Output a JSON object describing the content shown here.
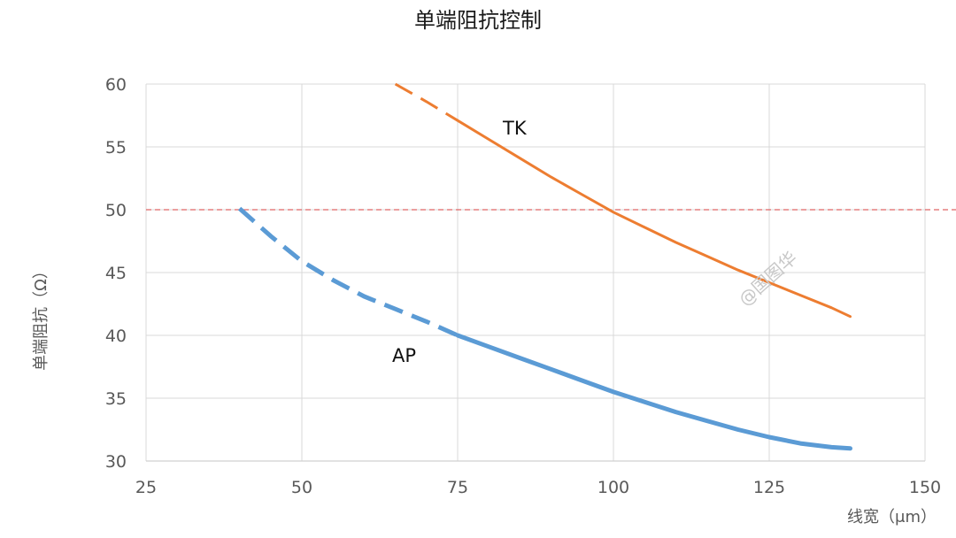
{
  "chart_data": {
    "type": "line",
    "title": "单端阻抗控制",
    "xlabel": "线宽（μm）",
    "ylabel": "单端阻抗（Ω）",
    "xlim": [
      25,
      150
    ],
    "ylim": [
      30,
      60
    ],
    "xticks": [
      25,
      50,
      75,
      100,
      125,
      150
    ],
    "yticks": [
      30,
      35,
      40,
      45,
      50,
      55,
      60
    ],
    "grid": true,
    "reference_line": {
      "y": 50,
      "color": "#e06666",
      "style": "dashed"
    },
    "series": [
      {
        "name": "TK",
        "color": "#ed7d31",
        "dashed_points": [
          [
            65,
            60
          ],
          [
            70,
            58.6
          ],
          [
            75,
            57.1
          ]
        ],
        "solid_points": [
          [
            75,
            57.1
          ],
          [
            80,
            55.6
          ],
          [
            85,
            54.1
          ],
          [
            90,
            52.6
          ],
          [
            95,
            51.2
          ],
          [
            100,
            49.8
          ],
          [
            105,
            48.6
          ],
          [
            110,
            47.4
          ],
          [
            115,
            46.3
          ],
          [
            120,
            45.2
          ],
          [
            125,
            44.2
          ],
          [
            130,
            43.2
          ],
          [
            135,
            42.2
          ],
          [
            138,
            41.5
          ]
        ]
      },
      {
        "name": "AP",
        "color": "#5b9bd5",
        "dashed_points": [
          [
            40,
            50.1
          ],
          [
            45,
            47.9
          ],
          [
            50,
            45.9
          ],
          [
            55,
            44.4
          ],
          [
            60,
            43.1
          ],
          [
            65,
            42.1
          ],
          [
            70,
            41.1
          ],
          [
            75,
            40
          ]
        ],
        "solid_points": [
          [
            75,
            40
          ],
          [
            80,
            39.1
          ],
          [
            85,
            38.2
          ],
          [
            90,
            37.3
          ],
          [
            95,
            36.4
          ],
          [
            100,
            35.5
          ],
          [
            105,
            34.7
          ],
          [
            110,
            33.9
          ],
          [
            115,
            33.2
          ],
          [
            120,
            32.5
          ],
          [
            125,
            31.9
          ],
          [
            130,
            31.4
          ],
          [
            135,
            31.1
          ],
          [
            138,
            31
          ]
        ]
      }
    ]
  },
  "watermark_text": "@国图华",
  "colors": {
    "grid": "#d9d9d9",
    "axis": "#d0d0d0"
  }
}
